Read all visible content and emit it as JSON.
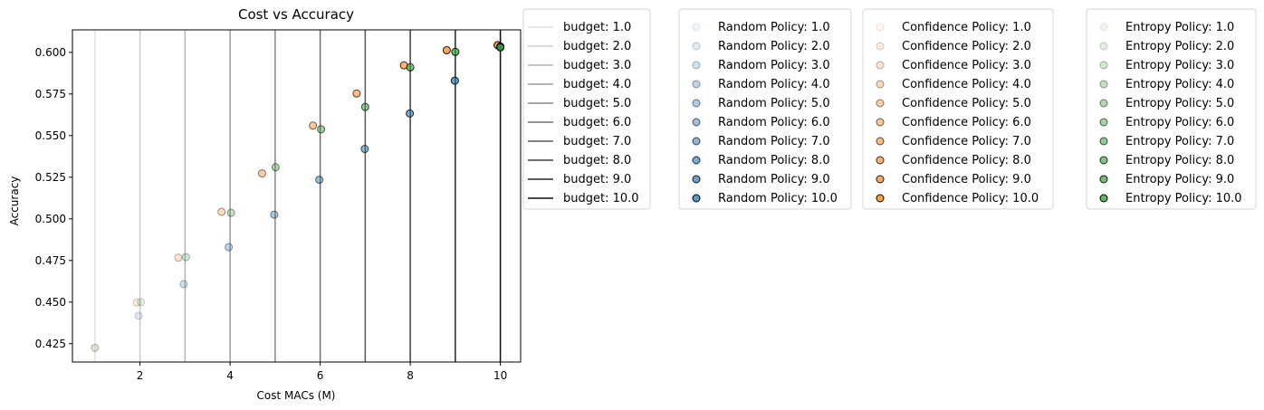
{
  "chart_data": {
    "type": "scatter",
    "title": "Cost vs Accuracy",
    "xlabel": "Cost MACs (M)",
    "ylabel": "Accuracy",
    "xlim": [
      0.5,
      10.45
    ],
    "ylim": [
      0.414,
      0.6135
    ],
    "x_ticks": [
      2,
      4,
      6,
      8,
      10
    ],
    "y_ticks": [
      0.425,
      0.45,
      0.475,
      0.5,
      0.525,
      0.55,
      0.575,
      0.6
    ],
    "y_tick_labels": [
      "0.425",
      "0.450",
      "0.475",
      "0.500",
      "0.525",
      "0.550",
      "0.575",
      "0.600"
    ],
    "grid": false,
    "budget_lines": {
      "x": [
        1,
        2,
        3,
        4,
        5,
        6,
        7,
        8,
        9,
        10
      ],
      "labels": [
        "budget: 1.0",
        "budget: 2.0",
        "budget: 3.0",
        "budget: 4.0",
        "budget: 5.0",
        "budget: 6.0",
        "budget: 7.0",
        "budget: 8.0",
        "budget: 9.0",
        "budget: 10.0"
      ],
      "gray_levels": [
        "#e2e2e2",
        "#cccccc",
        "#b4b4b4",
        "#9c9c9c",
        "#858585",
        "#6e6e6e",
        "#565656",
        "#3e3e3e",
        "#262626",
        "#0d0d0d"
      ],
      "legend_position": "right of plot"
    },
    "series": [
      {
        "name": "Random Policy",
        "color": "#1f77b4",
        "labels": [
          "Random Policy: 1.0",
          "Random Policy: 2.0",
          "Random Policy: 3.0",
          "Random Policy: 4.0",
          "Random Policy: 5.0",
          "Random Policy: 6.0",
          "Random Policy: 7.0",
          "Random Policy: 8.0",
          "Random Policy: 9.0",
          "Random Policy: 10.0"
        ],
        "x": [
          1.0,
          1.97,
          2.97,
          3.97,
          4.98,
          5.98,
          6.99,
          7.99,
          8.99,
          10.0
        ],
        "y": [
          0.4225,
          0.4418,
          0.4608,
          0.483,
          0.5025,
          0.5235,
          0.542,
          0.5633,
          0.583,
          0.6035
        ]
      },
      {
        "name": "Confidence Policy",
        "color": "#ff7f0e",
        "labels": [
          "Confidence Policy: 1.0",
          "Confidence Policy: 2.0",
          "Confidence Policy: 3.0",
          "Confidence Policy: 4.0",
          "Confidence Policy: 5.0",
          "Confidence Policy: 6.0",
          "Confidence Policy: 7.0",
          "Confidence Policy: 8.0",
          "Confidence Policy: 9.0",
          "Confidence Policy: 10.0"
        ],
        "x": [
          1.0,
          1.93,
          2.85,
          3.81,
          4.71,
          5.84,
          6.81,
          7.86,
          8.81,
          9.94
        ],
        "y": [
          0.4225,
          0.4497,
          0.4767,
          0.5042,
          0.5273,
          0.556,
          0.5753,
          0.5922,
          0.6013,
          0.6043
        ]
      },
      {
        "name": "Entropy Policy",
        "color": "#2ca02c",
        "labels": [
          "Entropy Policy: 1.0",
          "Entropy Policy: 2.0",
          "Entropy Policy: 3.0",
          "Entropy Policy: 4.0",
          "Entropy Policy: 5.0",
          "Entropy Policy: 6.0",
          "Entropy Policy: 7.0",
          "Entropy Policy: 8.0",
          "Entropy Policy: 9.0",
          "Entropy Policy: 10.0"
        ],
        "x": [
          1.0,
          2.02,
          3.02,
          4.02,
          5.01,
          6.02,
          7.0,
          8.0,
          9.0,
          10.0
        ],
        "y": [
          0.4225,
          0.45,
          0.477,
          0.5036,
          0.531,
          0.5538,
          0.5672,
          0.591,
          0.6003,
          0.603
        ]
      }
    ],
    "alpha_steps": [
      0.1,
      0.2,
      0.3,
      0.4,
      0.5,
      0.6,
      0.7,
      0.8,
      0.9,
      1.0
    ]
  }
}
